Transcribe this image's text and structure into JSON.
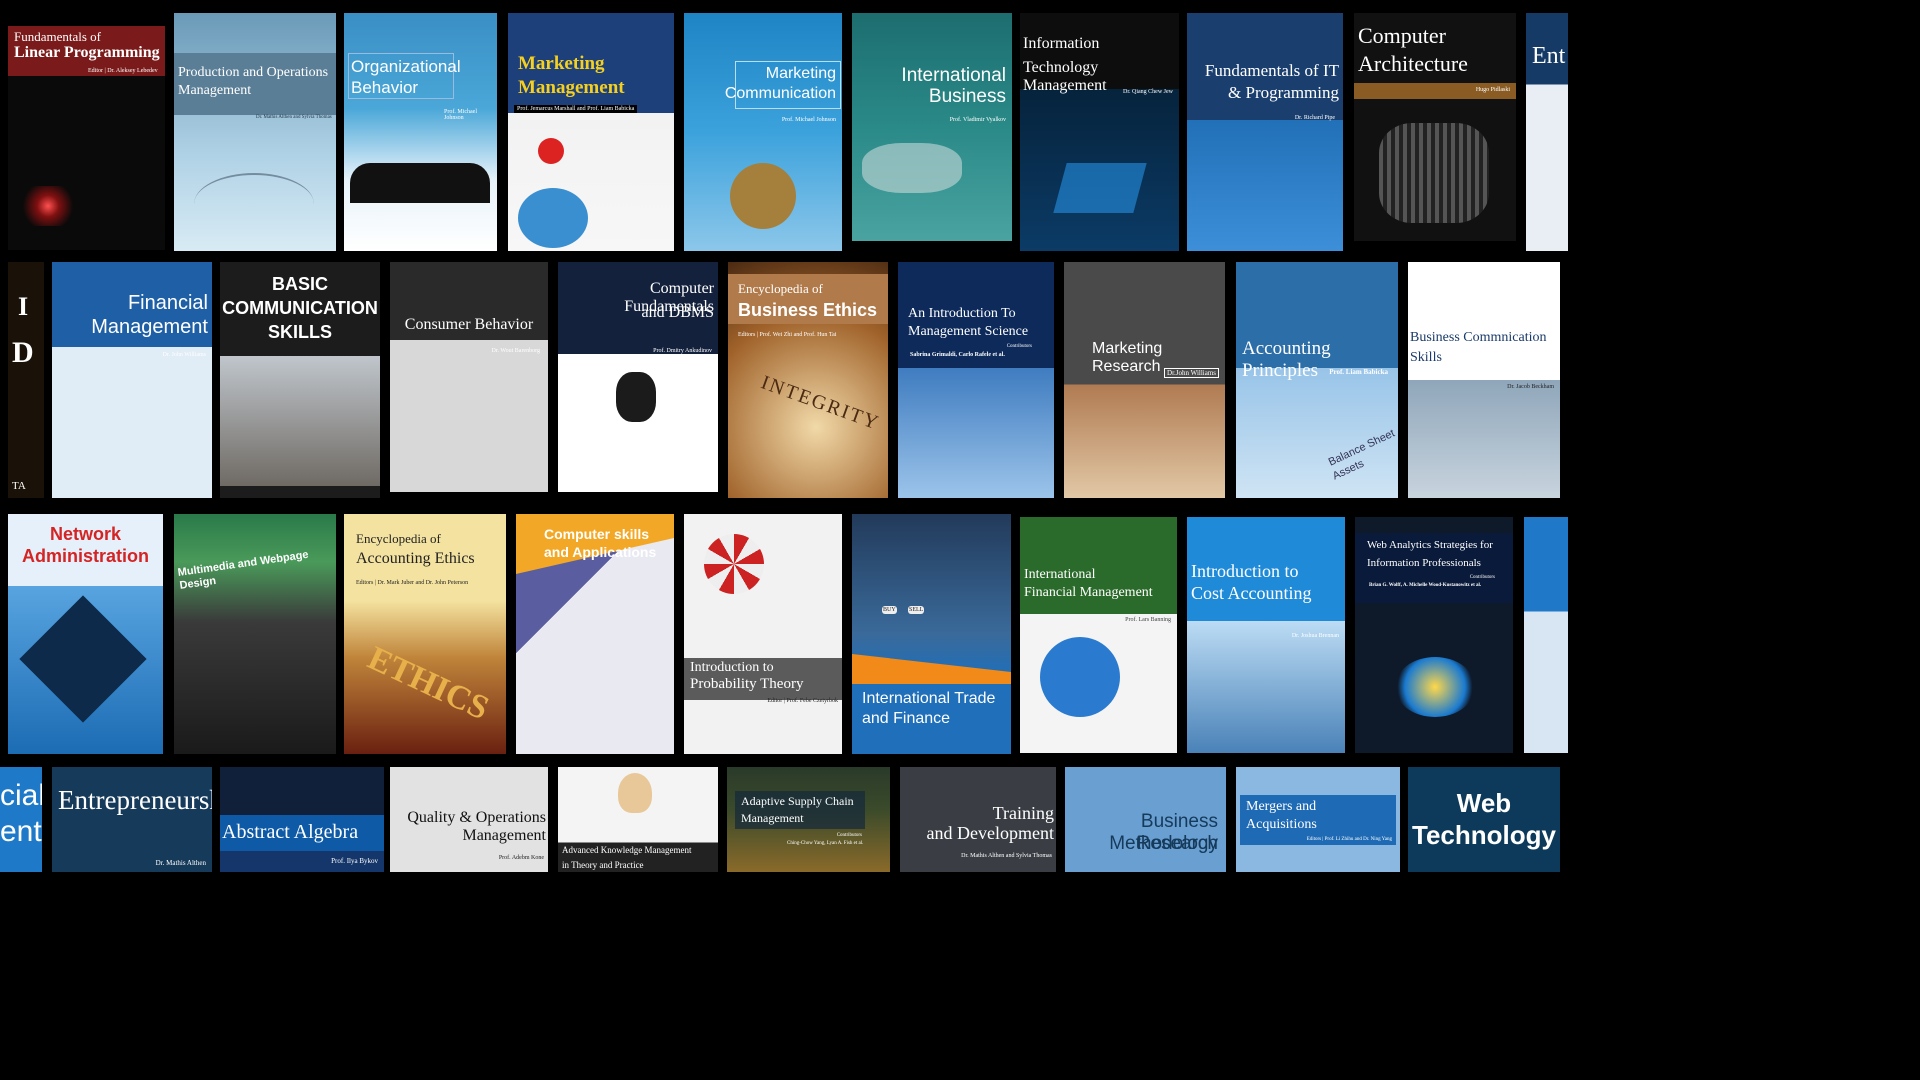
{
  "row1": [
    {
      "title": "Fundamentals of",
      "title2": "Linear Programming",
      "author": "Editor | Dr. Aleksey Lebedev"
    },
    {
      "title": "Production and Operations",
      "title2": "Management",
      "author": "Dr. Mathis Althen and Sylvia Thomas"
    },
    {
      "title": "Organizational",
      "title2": "Behavior",
      "author": "Prof. Michael Johnson"
    },
    {
      "title": "Marketing",
      "title2": "Management",
      "author": "Prof. Jemarcus Marshall and Prof. Liam Babicka"
    },
    {
      "title": "Marketing",
      "title2": "Communication",
      "author": "Prof. Michael Johnson"
    },
    {
      "title": "International",
      "title2": "Business",
      "author": "Prof. Vladimir Vyalkov"
    },
    {
      "title": "Information",
      "title2": "Technology Management",
      "author": "Dr. Qiang Chew Jew"
    },
    {
      "title": "Fundamentals of IT",
      "title2": "& Programming",
      "author": "Dr. Richard Pipe"
    },
    {
      "title": "Computer",
      "title2": "Architecture",
      "author": "Hugo Pidlaski"
    },
    {
      "title": "Ent",
      "title2": "",
      "author": ""
    }
  ],
  "row2": [
    {
      "title": "I",
      "title2": "D",
      "author": "TA"
    },
    {
      "title": "Financial",
      "title2": "Management",
      "author": "Dr. John Williams"
    },
    {
      "title": "BASIC",
      "title2": "COMMUNICATION",
      "title3": "SKILLS",
      "author": ""
    },
    {
      "title": "Consumer Behavior",
      "title2": "",
      "author": "Dr. Wout Barenborg"
    },
    {
      "title": "Computer Fundamentals",
      "title2": "and DBMS",
      "author": "Prof. Dmitry Ankudinov"
    },
    {
      "title": "Encyclopedia of",
      "title2": "Business Ethics",
      "author": "Editors | Prof. Wei Zhi and Prof. Hun Tai",
      "extra": "INTEGRITY"
    },
    {
      "title": "An Introduction To",
      "title2": "Management Science",
      "author": "Contributors",
      "author2": "Sabrina Grimaldi, Carlo Rafele et al."
    },
    {
      "title": "Marketing Research",
      "title2": "",
      "author": "Dr.John Williams"
    },
    {
      "title": "Accounting Principles",
      "title2": "",
      "author": "Prof. Liam Babicka",
      "extra": "Balance Sheet",
      "extra2": "Assets"
    },
    {
      "title": "Business Commnication",
      "title2": "Skills",
      "author": "Dr. Jacob Beckham"
    }
  ],
  "row3": [
    {
      "title": "Network",
      "title2": "Administration",
      "author": ""
    },
    {
      "title": "Multimedia and Webpage Design",
      "title2": "",
      "author": ""
    },
    {
      "title": "Encyclopedia of",
      "title2": "Accounting Ethics",
      "author": "Editors | Dr. Mark Juber and Dr. John Peterson",
      "extra": "ETHICS"
    },
    {
      "title": "Computer skills",
      "title2": "and Applications",
      "author": ""
    },
    {
      "title": "Introduction to",
      "title2": "Probability Theory",
      "author": "Editor | Prof. Febe Czetyrbok"
    },
    {
      "title": "International Trade",
      "title2": "and Finance",
      "author": "",
      "extra": "BUY",
      "extra2": "SELL"
    },
    {
      "title": "International",
      "title2": "Financial Management",
      "author": "Prof. Lars Banning"
    },
    {
      "title": "Introduction to",
      "title2": "Cost Accounting",
      "author": "Dr. Joshua Brennan"
    },
    {
      "title": "Web Analytics Strategies for",
      "title2": "Information Professionals",
      "author": "Contributors",
      "author2": "Brian G. Wolff, A. Michelle Wood-Kustanowitz et al."
    }
  ],
  "row4": [
    {
      "title": "cial",
      "title2": "ent",
      "author": ""
    },
    {
      "title": "Entrepreneurship",
      "title2": "",
      "author": "Dr. Mathis Althen"
    },
    {
      "title": "Abstract Algebra",
      "title2": "",
      "author": "Prof. Ilya Bykov"
    },
    {
      "title": "Quality & Operations",
      "title2": "Management",
      "author": "Prof. Adebm Kone"
    },
    {
      "title": "Advanced Knowledge Management",
      "title2": "in Theory and Practice",
      "author": ""
    },
    {
      "title": "Adaptive Supply Chain",
      "title2": "Management",
      "author": "Contributors",
      "author2": "Ching-Chow Yang, Lyan A. Fish et al."
    },
    {
      "title": "Training",
      "title2": "and Development",
      "author": "Dr. Mathis Althen and Sylvia Thomas"
    },
    {
      "title": "Business Research",
      "title2": "Methodology",
      "author": ""
    },
    {
      "title": "Mergers and",
      "title2": "Acquisitions",
      "author": "Editors | Prof. Li Zhihu and Dr. Ning Yang"
    },
    {
      "title": "Web",
      "title2": "Technology",
      "author": ""
    }
  ]
}
